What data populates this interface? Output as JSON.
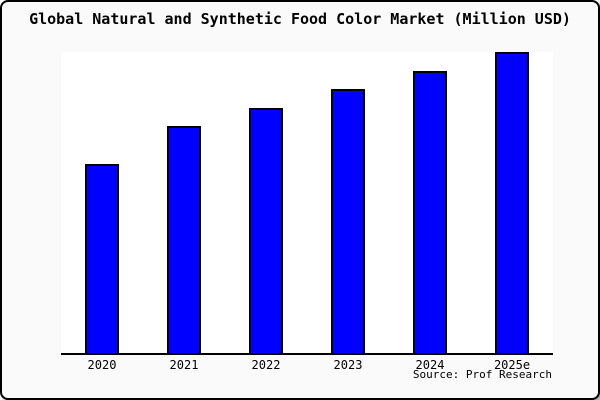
{
  "title": "Global Natural and Synthetic Food Color Market (Million USD)",
  "source_note": "Source: Prof Research",
  "colors": {
    "bar_fill": "#0000ff",
    "bar_border": "#000000",
    "frame_background": "#fafafa",
    "plot_background": "#ffffff",
    "frame_border": "#000000",
    "text": "#000000"
  },
  "chart_data": {
    "type": "bar",
    "title": "Global Natural and Synthetic Food Color Market (Million USD)",
    "categories": [
      "2020",
      "2021",
      "2022",
      "2023",
      "2024",
      "2025e"
    ],
    "values": [
      62.8,
      75.3,
      81.4,
      87.7,
      93.7,
      100
    ],
    "value_units": "relative bar height, percent of tallest bar (chart shows no numeric y-axis)",
    "xlabel": "",
    "ylabel": "",
    "ylim": [
      0,
      100
    ],
    "grid": false,
    "legend": null,
    "annotation": "Source: Prof Research"
  }
}
